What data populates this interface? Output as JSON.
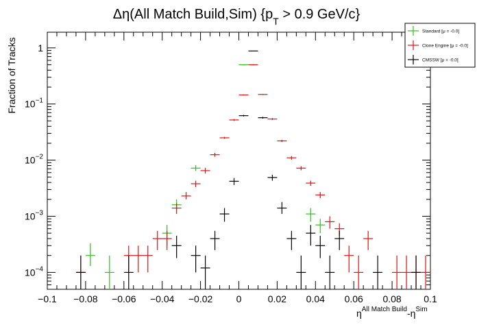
{
  "chart_data": {
    "type": "scatter",
    "title_main": "Δη(All Match Build,Sim) {p",
    "title_sub": "T",
    "title_tail": " > 0.9 GeV/c}",
    "ylabel": "Fraction of Tracks",
    "xlabel_base": "η",
    "xlabel_sup1": "All Match Build",
    "xlabel_mid": "-η",
    "xlabel_sup2": "Sim",
    "xlim": [
      -0.1,
      0.1
    ],
    "ylim": [
      5e-05,
      1.9
    ],
    "y_scale": "log",
    "x_ticks": [
      -0.1,
      -0.08,
      -0.06,
      -0.04,
      -0.02,
      0,
      0.02,
      0.04,
      0.06,
      0.08,
      0.1
    ],
    "x_tick_labels": [
      "−0.1",
      "−0.08",
      "−0.06",
      "−0.04",
      "−0.02",
      "0",
      "0.02",
      "0.04",
      "0.06",
      "0.08",
      "0.1"
    ],
    "y_ticks": [
      0.0001,
      0.001,
      0.01,
      0.1,
      1
    ],
    "y_tick_labels": [
      {
        "base": "10",
        "exp": "−4"
      },
      {
        "base": "10",
        "exp": "−3"
      },
      {
        "base": "10",
        "exp": "−2"
      },
      {
        "base": "10",
        "exp": "−1"
      },
      {
        "base": "1",
        "exp": ""
      }
    ],
    "bin_half_width": 0.0025,
    "legend_position": "top-right",
    "series": [
      {
        "name": "Standard",
        "stat": "[μ = -0.0]",
        "color": "#33bb22",
        "points": [
          {
            "x": -0.0775,
            "y": 0.0002,
            "lo": 0.00013,
            "hi": 0.00033
          },
          {
            "x": -0.0675,
            "y": 0.0001,
            "lo": 5e-05,
            "hi": 0.0002
          },
          {
            "x": -0.0375,
            "y": 0.0005,
            "lo": 0.0003,
            "hi": 0.0007
          },
          {
            "x": -0.0325,
            "y": 0.0016,
            "lo": 0.0013,
            "hi": 0.002
          },
          {
            "x": -0.0225,
            "y": 0.0072,
            "lo": 0.0064,
            "hi": 0.0081
          },
          {
            "x": 0.0025,
            "y": 0.5,
            "lo": 0.49,
            "hi": 0.51
          },
          {
            "x": 0.0375,
            "y": 0.0011,
            "lo": 0.0008,
            "hi": 0.0014
          },
          {
            "x": 0.0425,
            "y": 0.0007,
            "lo": 0.0005,
            "hi": 0.0009
          }
        ]
      },
      {
        "name": "Clone Engine",
        "stat": "[μ = -0.0]",
        "color": "#dd1111",
        "points": [
          {
            "x": -0.0825,
            "y": 0.0001,
            "lo": 5e-05,
            "hi": 0.0002
          },
          {
            "x": -0.0575,
            "y": 0.0002,
            "lo": 0.0001,
            "hi": 0.0003
          },
          {
            "x": -0.0525,
            "y": 0.0002,
            "lo": 0.0001,
            "hi": 0.0003
          },
          {
            "x": -0.0475,
            "y": 0.0002,
            "lo": 0.0001,
            "hi": 0.0003
          },
          {
            "x": -0.0425,
            "y": 0.0004,
            "lo": 0.00025,
            "hi": 0.00055
          },
          {
            "x": -0.0375,
            "y": 0.0004,
            "lo": 0.00025,
            "hi": 0.00055
          },
          {
            "x": -0.0325,
            "y": 0.0014,
            "lo": 0.0011,
            "hi": 0.0017
          },
          {
            "x": -0.0275,
            "y": 0.0023,
            "lo": 0.002,
            "hi": 0.0027
          },
          {
            "x": -0.0225,
            "y": 0.0038,
            "lo": 0.0033,
            "hi": 0.0043
          },
          {
            "x": -0.0175,
            "y": 0.0065,
            "lo": 0.0058,
            "hi": 0.0073
          },
          {
            "x": -0.0125,
            "y": 0.0125,
            "lo": 0.0115,
            "hi": 0.0135
          },
          {
            "x": -0.0075,
            "y": 0.025,
            "lo": 0.024,
            "hi": 0.026
          },
          {
            "x": -0.0025,
            "y": 0.052,
            "lo": 0.05,
            "hi": 0.054
          },
          {
            "x": 0.0025,
            "y": 0.145,
            "lo": 0.142,
            "hi": 0.148
          },
          {
            "x": 0.0075,
            "y": 0.5,
            "lo": 0.49,
            "hi": 0.51
          },
          {
            "x": 0.0125,
            "y": 0.148,
            "lo": 0.145,
            "hi": 0.151
          },
          {
            "x": 0.0175,
            "y": 0.054,
            "lo": 0.052,
            "hi": 0.056
          },
          {
            "x": 0.0225,
            "y": 0.022,
            "lo": 0.021,
            "hi": 0.023
          },
          {
            "x": 0.0275,
            "y": 0.011,
            "lo": 0.0102,
            "hi": 0.0118
          },
          {
            "x": 0.0325,
            "y": 0.0072,
            "lo": 0.0066,
            "hi": 0.0078
          },
          {
            "x": 0.0375,
            "y": 0.0039,
            "lo": 0.0035,
            "hi": 0.0043
          },
          {
            "x": 0.0425,
            "y": 0.0024,
            "lo": 0.0021,
            "hi": 0.0027
          },
          {
            "x": 0.0475,
            "y": 0.0008,
            "lo": 0.0006,
            "hi": 0.001
          },
          {
            "x": 0.0525,
            "y": 0.0006,
            "lo": 0.00045,
            "hi": 0.00075
          },
          {
            "x": 0.0575,
            "y": 0.0002,
            "lo": 0.0001,
            "hi": 0.0003
          },
          {
            "x": 0.0625,
            "y": 0.0001,
            "lo": 5e-05,
            "hi": 0.0002
          },
          {
            "x": 0.0675,
            "y": 0.0004,
            "lo": 0.00025,
            "hi": 0.00055
          },
          {
            "x": 0.0825,
            "y": 0.0001,
            "lo": 5e-05,
            "hi": 0.0002
          },
          {
            "x": 0.0875,
            "y": 0.0001,
            "lo": 5e-05,
            "hi": 0.0002
          },
          {
            "x": 0.0925,
            "y": 0.0001,
            "lo": 5e-05,
            "hi": 0.0002
          },
          {
            "x": 0.0975,
            "y": 0.0001,
            "lo": 5e-05,
            "hi": 0.0002
          }
        ]
      },
      {
        "name": "CMSSW",
        "stat": "[μ = -0.0]",
        "color": "#000000",
        "points": [
          {
            "x": -0.0825,
            "y": 0.0001,
            "lo": 5e-05,
            "hi": 0.0002
          },
          {
            "x": -0.0575,
            "y": 0.0001,
            "lo": 5e-05,
            "hi": 0.0002
          },
          {
            "x": -0.0325,
            "y": 0.0003,
            "lo": 0.00018,
            "hi": 0.00045
          },
          {
            "x": -0.0225,
            "y": 0.0002,
            "lo": 0.0001,
            "hi": 0.0003
          },
          {
            "x": -0.0175,
            "y": 0.00012,
            "lo": 5e-05,
            "hi": 0.0002
          },
          {
            "x": -0.0125,
            "y": 0.0004,
            "lo": 0.00025,
            "hi": 0.00055
          },
          {
            "x": -0.0075,
            "y": 0.0011,
            "lo": 0.0008,
            "hi": 0.0014
          },
          {
            "x": -0.0025,
            "y": 0.0042,
            "lo": 0.0036,
            "hi": 0.0048
          },
          {
            "x": 0.0025,
            "y": 0.062,
            "lo": 0.06,
            "hi": 0.064
          },
          {
            "x": 0.0075,
            "y": 0.88,
            "lo": 0.87,
            "hi": 0.89
          },
          {
            "x": 0.0125,
            "y": 0.057,
            "lo": 0.055,
            "hi": 0.059
          },
          {
            "x": 0.0175,
            "y": 0.0049,
            "lo": 0.0043,
            "hi": 0.0055
          },
          {
            "x": 0.0225,
            "y": 0.0014,
            "lo": 0.0011,
            "hi": 0.0018
          },
          {
            "x": 0.0275,
            "y": 0.0004,
            "lo": 0.00025,
            "hi": 0.00055
          },
          {
            "x": 0.0325,
            "y": 0.0001,
            "lo": 5e-05,
            "hi": 0.0002
          },
          {
            "x": 0.0375,
            "y": 0.0005,
            "lo": 0.0003,
            "hi": 0.0007
          },
          {
            "x": 0.0425,
            "y": 0.0003,
            "lo": 0.00018,
            "hi": 0.00045
          },
          {
            "x": 0.0475,
            "y": 0.0001,
            "lo": 5e-05,
            "hi": 0.0002
          },
          {
            "x": 0.0525,
            "y": 0.0004,
            "lo": 0.00025,
            "hi": 0.00055
          },
          {
            "x": 0.0725,
            "y": 0.0001,
            "lo": 5e-05,
            "hi": 0.0002
          },
          {
            "x": 0.0925,
            "y": 0.0001,
            "lo": 5e-05,
            "hi": 0.0002
          }
        ]
      }
    ]
  }
}
